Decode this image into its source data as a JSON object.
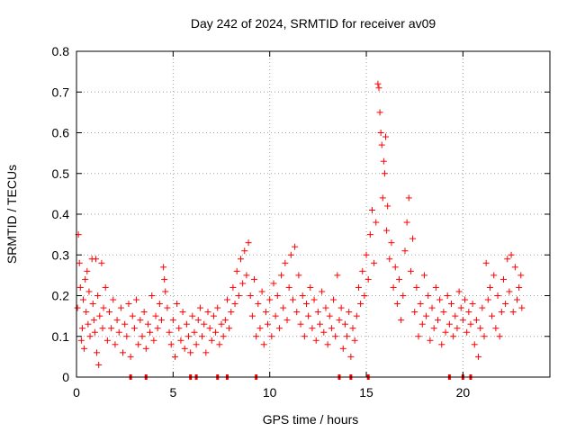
{
  "chart_data": {
    "type": "scatter",
    "title": "Day 242 of 2024, SRMTID for receiver av09",
    "xlabel": "GPS time / hours",
    "ylabel": "SRMTID / TECUs",
    "xlim": [
      0,
      24.5
    ],
    "ylim": [
      0,
      0.8
    ],
    "xticks": [
      0,
      5,
      10,
      15,
      20
    ],
    "xtick_labels": [
      "0",
      "5",
      "10",
      "15",
      "20"
    ],
    "yticks": [
      0,
      0.1,
      0.2,
      0.3,
      0.4,
      0.5,
      0.6,
      0.7,
      0.8
    ],
    "ytick_labels": [
      "0",
      "0.1",
      "0.2",
      "0.3",
      "0.4",
      "0.5",
      "0.6",
      "0.7",
      "0.8"
    ],
    "grid": true,
    "legend": "none",
    "marker": "+",
    "color": "#ff0000",
    "series": [
      {
        "name": "SRMTID",
        "points": [
          [
            0.05,
            0.17
          ],
          [
            0.1,
            0.35
          ],
          [
            0.15,
            0.28
          ],
          [
            0.2,
            0.22
          ],
          [
            0.25,
            0.09
          ],
          [
            0.3,
            0.12
          ],
          [
            0.35,
            0.19
          ],
          [
            0.4,
            0.07
          ],
          [
            0.45,
            0.24
          ],
          [
            0.5,
            0.16
          ],
          [
            0.55,
            0.26
          ],
          [
            0.6,
            0.13
          ],
          [
            0.65,
            0.21
          ],
          [
            0.7,
            0.1
          ],
          [
            0.8,
            0.29
          ],
          [
            0.85,
            0.18
          ],
          [
            0.9,
            0.14
          ],
          [
            0.95,
            0.11
          ],
          [
            1.0,
            0.29
          ],
          [
            1.05,
            0.06
          ],
          [
            1.1,
            0.2
          ],
          [
            1.15,
            0.03
          ],
          [
            1.2,
            0.15
          ],
          [
            1.3,
            0.28
          ],
          [
            1.35,
            0.12
          ],
          [
            1.4,
            0.17
          ],
          [
            1.5,
            0.22
          ],
          [
            1.6,
            0.09
          ],
          [
            1.7,
            0.16
          ],
          [
            1.8,
            0.12
          ],
          [
            1.9,
            0.19
          ],
          [
            2.0,
            0.08
          ],
          [
            2.1,
            0.14
          ],
          [
            2.2,
            0.11
          ],
          [
            2.3,
            0.17
          ],
          [
            2.4,
            0.06
          ],
          [
            2.5,
            0.13
          ],
          [
            2.6,
            0.1
          ],
          [
            2.7,
            0.18
          ],
          [
            2.8,
            0.05
          ],
          [
            2.9,
            0.15
          ],
          [
            3.0,
            0.12
          ],
          [
            3.1,
            0.19
          ],
          [
            3.2,
            0.08
          ],
          [
            3.3,
            0.14
          ],
          [
            3.4,
            0.1
          ],
          [
            3.5,
            0.16
          ],
          [
            3.6,
            0.07
          ],
          [
            3.7,
            0.13
          ],
          [
            3.8,
            0.11
          ],
          [
            3.9,
            0.2
          ],
          [
            4.0,
            0.09
          ],
          [
            4.1,
            0.15
          ],
          [
            4.2,
            0.12
          ],
          [
            4.3,
            0.18
          ],
          [
            4.4,
            0.14
          ],
          [
            4.5,
            0.27
          ],
          [
            4.55,
            0.24
          ],
          [
            4.6,
            0.21
          ],
          [
            4.7,
            0.17
          ],
          [
            4.8,
            0.11
          ],
          [
            4.9,
            0.08
          ],
          [
            5.0,
            0.14
          ],
          [
            5.1,
            0.05
          ],
          [
            5.2,
            0.18
          ],
          [
            5.3,
            0.12
          ],
          [
            5.4,
            0.09
          ],
          [
            5.5,
            0.16
          ],
          [
            5.6,
            0.07
          ],
          [
            5.7,
            0.13
          ],
          [
            5.8,
            0.1
          ],
          [
            5.9,
            0.06
          ],
          [
            6.0,
            0.15
          ],
          [
            6.1,
            0.11
          ],
          [
            6.2,
            0.08
          ],
          [
            6.3,
            0.14
          ],
          [
            6.4,
            0.17
          ],
          [
            6.5,
            0.1
          ],
          [
            6.6,
            0.13
          ],
          [
            6.7,
            0.06
          ],
          [
            6.8,
            0.16
          ],
          [
            6.9,
            0.12
          ],
          [
            7.0,
            0.09
          ],
          [
            7.1,
            0.15
          ],
          [
            7.2,
            0.11
          ],
          [
            7.3,
            0.17
          ],
          [
            7.4,
            0.08
          ],
          [
            7.5,
            0.13
          ],
          [
            7.6,
            0.1
          ],
          [
            7.7,
            0.14
          ],
          [
            7.8,
            0.19
          ],
          [
            7.9,
            0.12
          ],
          [
            8.0,
            0.16
          ],
          [
            8.1,
            0.22
          ],
          [
            8.2,
            0.18
          ],
          [
            8.3,
            0.26
          ],
          [
            8.4,
            0.2
          ],
          [
            8.5,
            0.29
          ],
          [
            8.6,
            0.23
          ],
          [
            8.7,
            0.31
          ],
          [
            8.8,
            0.25
          ],
          [
            8.9,
            0.33
          ],
          [
            9.0,
            0.2
          ],
          [
            9.1,
            0.15
          ],
          [
            9.2,
            0.24
          ],
          [
            9.3,
            0.1
          ],
          [
            9.4,
            0.18
          ],
          [
            9.5,
            0.12
          ],
          [
            9.6,
            0.21
          ],
          [
            9.7,
            0.08
          ],
          [
            9.8,
            0.16
          ],
          [
            9.9,
            0.13
          ],
          [
            10.0,
            0.19
          ],
          [
            10.1,
            0.1
          ],
          [
            10.2,
            0.23
          ],
          [
            10.3,
            0.15
          ],
          [
            10.4,
            0.2
          ],
          [
            10.5,
            0.12
          ],
          [
            10.6,
            0.25
          ],
          [
            10.7,
            0.17
          ],
          [
            10.8,
            0.28
          ],
          [
            10.9,
            0.14
          ],
          [
            11.0,
            0.22
          ],
          [
            11.1,
            0.3
          ],
          [
            11.2,
            0.19
          ],
          [
            11.3,
            0.32
          ],
          [
            11.4,
            0.16
          ],
          [
            11.5,
            0.25
          ],
          [
            11.6,
            0.13
          ],
          [
            11.7,
            0.2
          ],
          [
            11.8,
            0.1
          ],
          [
            11.9,
            0.18
          ],
          [
            12.0,
            0.15
          ],
          [
            12.1,
            0.22
          ],
          [
            12.2,
            0.12
          ],
          [
            12.3,
            0.19
          ],
          [
            12.4,
            0.09
          ],
          [
            12.5,
            0.16
          ],
          [
            12.6,
            0.13
          ],
          [
            12.7,
            0.21
          ],
          [
            12.8,
            0.11
          ],
          [
            12.9,
            0.17
          ],
          [
            13.0,
            0.08
          ],
          [
            13.1,
            0.15
          ],
          [
            13.2,
            0.12
          ],
          [
            13.3,
            0.19
          ],
          [
            13.4,
            0.1
          ],
          [
            13.5,
            0.25
          ],
          [
            13.6,
            0.14
          ],
          [
            13.7,
            0.17
          ],
          [
            13.8,
            0.07
          ],
          [
            13.9,
            0.13
          ],
          [
            14.0,
            0.1
          ],
          [
            14.1,
            0.16
          ],
          [
            14.2,
            0.05
          ],
          [
            14.3,
            0.12
          ],
          [
            14.4,
            0.09
          ],
          [
            14.5,
            0.15
          ],
          [
            14.6,
            0.22
          ],
          [
            14.7,
            0.18
          ],
          [
            14.8,
            0.26
          ],
          [
            14.9,
            0.2
          ],
          [
            15.0,
            0.3
          ],
          [
            15.1,
            0.24
          ],
          [
            15.2,
            0.35
          ],
          [
            15.3,
            0.41
          ],
          [
            15.4,
            0.28
          ],
          [
            15.5,
            0.38
          ],
          [
            15.6,
            0.72
          ],
          [
            15.65,
            0.71
          ],
          [
            15.7,
            0.65
          ],
          [
            15.75,
            0.6
          ],
          [
            15.8,
            0.57
          ],
          [
            15.85,
            0.44
          ],
          [
            15.9,
            0.53
          ],
          [
            15.95,
            0.5
          ],
          [
            16.0,
            0.59
          ],
          [
            16.05,
            0.36
          ],
          [
            16.1,
            0.42
          ],
          [
            16.2,
            0.29
          ],
          [
            16.3,
            0.33
          ],
          [
            16.4,
            0.22
          ],
          [
            16.5,
            0.27
          ],
          [
            16.6,
            0.18
          ],
          [
            16.7,
            0.24
          ],
          [
            16.8,
            0.14
          ],
          [
            16.9,
            0.2
          ],
          [
            17.0,
            0.31
          ],
          [
            17.1,
            0.38
          ],
          [
            17.2,
            0.44
          ],
          [
            17.3,
            0.26
          ],
          [
            17.4,
            0.34
          ],
          [
            17.5,
            0.16
          ],
          [
            17.6,
            0.22
          ],
          [
            17.7,
            0.1
          ],
          [
            17.8,
            0.18
          ],
          [
            17.9,
            0.13
          ],
          [
            18.0,
            0.25
          ],
          [
            18.1,
            0.15
          ],
          [
            18.2,
            0.2
          ],
          [
            18.3,
            0.09
          ],
          [
            18.4,
            0.17
          ],
          [
            18.5,
            0.12
          ],
          [
            18.6,
            0.22
          ],
          [
            18.7,
            0.14
          ],
          [
            18.8,
            0.19
          ],
          [
            18.9,
            0.08
          ],
          [
            19.0,
            0.16
          ],
          [
            19.1,
            0.11
          ],
          [
            19.2,
            0.2
          ],
          [
            19.3,
            0.13
          ],
          [
            19.4,
            0.18
          ],
          [
            19.5,
            0.1
          ],
          [
            19.6,
            0.15
          ],
          [
            19.7,
            0.12
          ],
          [
            19.8,
            0.21
          ],
          [
            19.9,
            0.17
          ],
          [
            20.0,
            0.14
          ],
          [
            20.1,
            0.19
          ],
          [
            20.2,
            0.11
          ],
          [
            20.3,
            0.16
          ],
          [
            20.4,
            0.13
          ],
          [
            20.5,
            0.18
          ],
          [
            20.6,
            0.08
          ],
          [
            20.7,
            0.14
          ],
          [
            20.8,
            0.05
          ],
          [
            20.9,
            0.12
          ],
          [
            21.0,
            0.17
          ],
          [
            21.1,
            0.1
          ],
          [
            21.2,
            0.28
          ],
          [
            21.3,
            0.19
          ],
          [
            21.4,
            0.22
          ],
          [
            21.5,
            0.15
          ],
          [
            21.6,
            0.25
          ],
          [
            21.7,
            0.12
          ],
          [
            21.8,
            0.2
          ],
          [
            21.9,
            0.1
          ],
          [
            22.0,
            0.16
          ],
          [
            22.1,
            0.24
          ],
          [
            22.2,
            0.18
          ],
          [
            22.3,
            0.29
          ],
          [
            22.4,
            0.21
          ],
          [
            22.5,
            0.3
          ],
          [
            22.6,
            0.16
          ],
          [
            22.7,
            0.27
          ],
          [
            22.8,
            0.19
          ],
          [
            22.9,
            0.22
          ],
          [
            23.0,
            0.25
          ],
          [
            23.05,
            0.17
          ]
        ]
      }
    ],
    "axis_markers": [
      2.8,
      3.6,
      5.9,
      6.2,
      7.3,
      7.8,
      9.3,
      13.6,
      14.2,
      15.1,
      19.3,
      20.0,
      20.4
    ]
  }
}
